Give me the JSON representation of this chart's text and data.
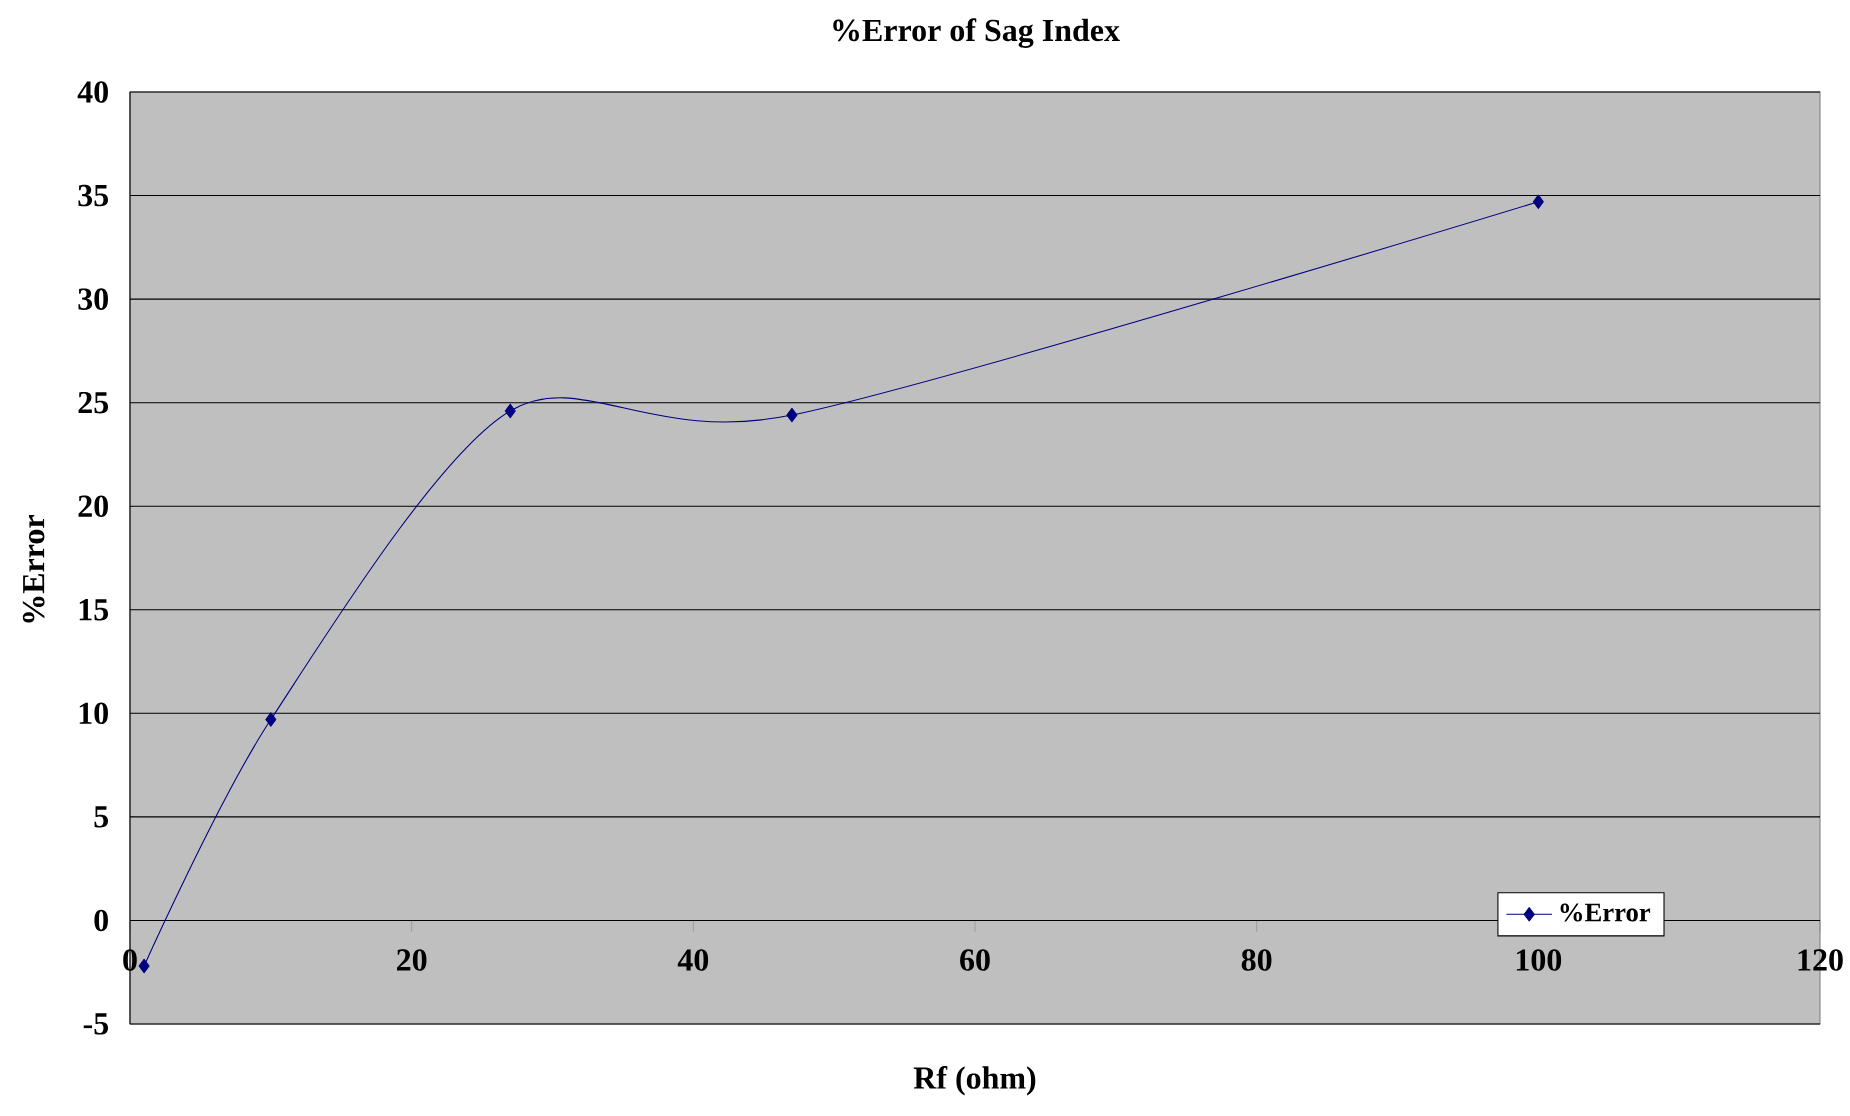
{
  "chart_data": {
    "type": "line",
    "title": "%Error of Sag Index",
    "xlabel": "Rf (ohm)",
    "ylabel": "%Error",
    "x": [
      1,
      10,
      27,
      47,
      100
    ],
    "series": [
      {
        "name": "%Error",
        "color": "#000080",
        "values": [
          -2.2,
          9.7,
          24.6,
          24.4,
          34.7
        ]
      }
    ],
    "xlim": [
      0,
      120
    ],
    "xticks": [
      0,
      20,
      40,
      60,
      80,
      100,
      120
    ],
    "ylim": [
      -5,
      40
    ],
    "yticks": [
      -5,
      0,
      5,
      10,
      15,
      20,
      25,
      30,
      35,
      40
    ],
    "grid": "y",
    "legend": "bottom right",
    "marker": "diamond"
  }
}
